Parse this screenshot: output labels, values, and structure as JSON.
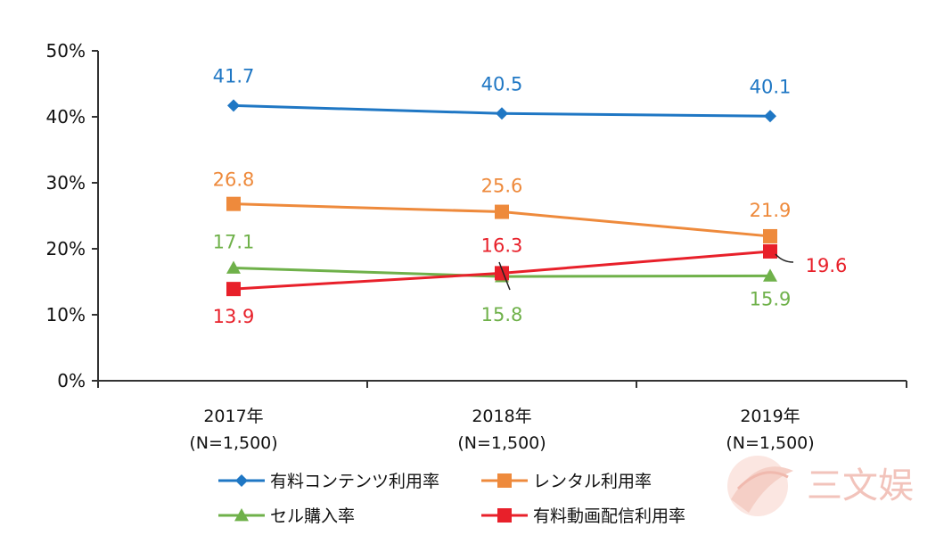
{
  "chart_data": {
    "type": "line",
    "categories": [
      [
        "2017年",
        "(N=1,500)"
      ],
      [
        "2018年",
        "(N=1,500)"
      ],
      [
        "2019年",
        "(N=1,500)"
      ]
    ],
    "ylim": [
      0,
      50
    ],
    "yticks": [
      0,
      10,
      20,
      30,
      40,
      50
    ],
    "y_tick_format": "%",
    "series": [
      {
        "name": "有料コンテンツ利用率",
        "color": "#1f77c4",
        "marker": "diamond",
        "values": [
          41.7,
          40.5,
          40.1
        ],
        "labels": [
          "41.7",
          "40.5",
          "40.1"
        ]
      },
      {
        "name": "レンタル利用率",
        "color": "#ee8a3c",
        "marker": "square",
        "values": [
          26.8,
          25.6,
          21.9
        ],
        "labels": [
          "26.8",
          "25.6",
          "21.9"
        ]
      },
      {
        "name": "セル購入率",
        "color": "#6fb14a",
        "marker": "triangle",
        "values": [
          17.1,
          15.8,
          15.9
        ],
        "labels": [
          "17.1",
          "15.8",
          "15.9"
        ]
      },
      {
        "name": "有料動画配信利用率",
        "color": "#e8202a",
        "marker": "square",
        "values": [
          13.9,
          16.3,
          19.6
        ],
        "labels": [
          "13.9",
          "16.3",
          "19.6"
        ]
      }
    ],
    "legend_position": "bottom",
    "grid": false
  },
  "watermark": {
    "text": "三文娱"
  }
}
